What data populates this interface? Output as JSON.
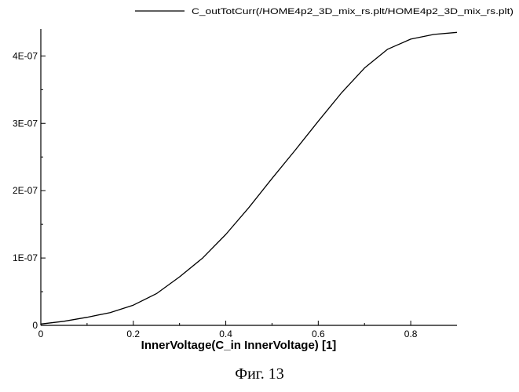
{
  "chart_data": {
    "type": "line",
    "xlabel": "InnerVoltage(C_in InnerVoltage) [1]",
    "ylabel": "",
    "xlim": [
      0,
      0.9
    ],
    "ylim": [
      0,
      4.4e-07
    ],
    "grid": false,
    "legend_position": "top-right",
    "x_ticks": [
      0,
      0.2,
      0.4,
      0.6,
      0.8
    ],
    "x_tick_labels": [
      "0",
      "0.2",
      "0.4",
      "0.6",
      "0.8"
    ],
    "y_ticks": [
      0,
      1e-07,
      2e-07,
      3e-07,
      4e-07
    ],
    "y_tick_labels": [
      "0",
      "1E-07",
      "2E-07",
      "3E-07",
      "4E-07"
    ],
    "series": [
      {
        "name": "C_outTotCurr(/HOME4p2_3D_mix_rs.plt/HOME4p2_3D_mix_rs.plt)",
        "color": "#000000",
        "x": [
          0,
          0.05,
          0.1,
          0.15,
          0.2,
          0.25,
          0.3,
          0.35,
          0.4,
          0.45,
          0.5,
          0.55,
          0.6,
          0.65,
          0.7,
          0.75,
          0.8,
          0.85,
          0.9
        ],
        "y": [
          2e-09,
          6e-09,
          1.2e-08,
          1.9e-08,
          3e-08,
          4.7e-08,
          7.2e-08,
          1e-07,
          1.35e-07,
          1.75e-07,
          2.18e-07,
          2.6e-07,
          3.03e-07,
          3.45e-07,
          3.82e-07,
          4.1e-07,
          4.25e-07,
          4.32e-07,
          4.35e-07
        ]
      }
    ]
  },
  "caption": "Фиг. 13"
}
